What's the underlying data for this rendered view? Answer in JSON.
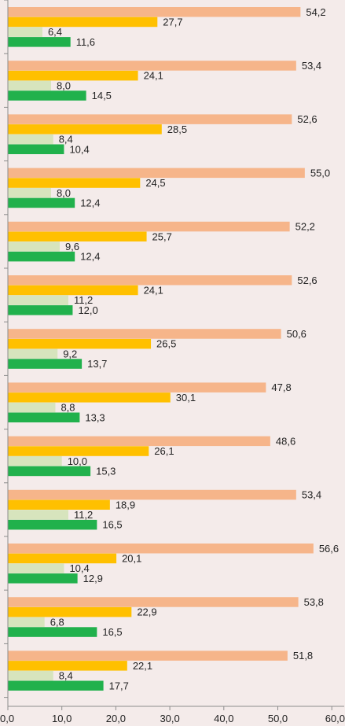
{
  "chart_data": {
    "type": "bar",
    "orientation": "horizontal",
    "xlim": [
      0,
      60
    ],
    "x_ticks": [
      "0,0",
      "10,0",
      "20,0",
      "30,0",
      "40,0",
      "50,0",
      "60,0"
    ],
    "grid": false,
    "colors": [
      "#f6b58a",
      "#ffc000",
      "#d7e4bd",
      "#21b14c"
    ],
    "groups": [
      {
        "values": [
          54.2,
          27.7,
          6.4,
          11.6
        ],
        "labels": [
          "54,2",
          "27,7",
          "6,4",
          "11,6"
        ]
      },
      {
        "values": [
          53.4,
          24.1,
          8.0,
          14.5
        ],
        "labels": [
          "53,4",
          "24,1",
          "8,0",
          "14,5"
        ]
      },
      {
        "values": [
          52.6,
          28.5,
          8.4,
          10.4
        ],
        "labels": [
          "52,6",
          "28,5",
          "8,4",
          "10,4"
        ]
      },
      {
        "values": [
          55.0,
          24.5,
          8.0,
          12.4
        ],
        "labels": [
          "55,0",
          "24,5",
          "8,0",
          "12,4"
        ]
      },
      {
        "values": [
          52.2,
          25.7,
          9.6,
          12.4
        ],
        "labels": [
          "52,2",
          "25,7",
          "9,6",
          "12,4"
        ]
      },
      {
        "values": [
          52.6,
          24.1,
          11.2,
          12.0
        ],
        "labels": [
          "52,6",
          "24,1",
          "11,2",
          "12,0"
        ]
      },
      {
        "values": [
          50.6,
          26.5,
          9.2,
          13.7
        ],
        "labels": [
          "50,6",
          "26,5",
          "9,2",
          "13,7"
        ]
      },
      {
        "values": [
          47.8,
          30.1,
          8.8,
          13.3
        ],
        "labels": [
          "47,8",
          "30,1",
          "8,8",
          "13,3"
        ]
      },
      {
        "values": [
          48.6,
          26.1,
          10.0,
          15.3
        ],
        "labels": [
          "48,6",
          "26,1",
          "10,0",
          "15,3"
        ]
      },
      {
        "values": [
          53.4,
          18.9,
          11.2,
          16.5
        ],
        "labels": [
          "53,4",
          "18,9",
          "11,2",
          "16,5"
        ]
      },
      {
        "values": [
          56.6,
          20.1,
          10.4,
          12.9
        ],
        "labels": [
          "56,6",
          "20,1",
          "10,4",
          "12,9"
        ]
      },
      {
        "values": [
          53.8,
          22.9,
          6.8,
          16.5
        ],
        "labels": [
          "53,8",
          "22,9",
          "6,8",
          "16,5"
        ]
      },
      {
        "values": [
          51.8,
          22.1,
          8.4,
          17.7
        ],
        "labels": [
          "51,8",
          "22,1",
          "8,4",
          "17,7"
        ]
      }
    ]
  }
}
